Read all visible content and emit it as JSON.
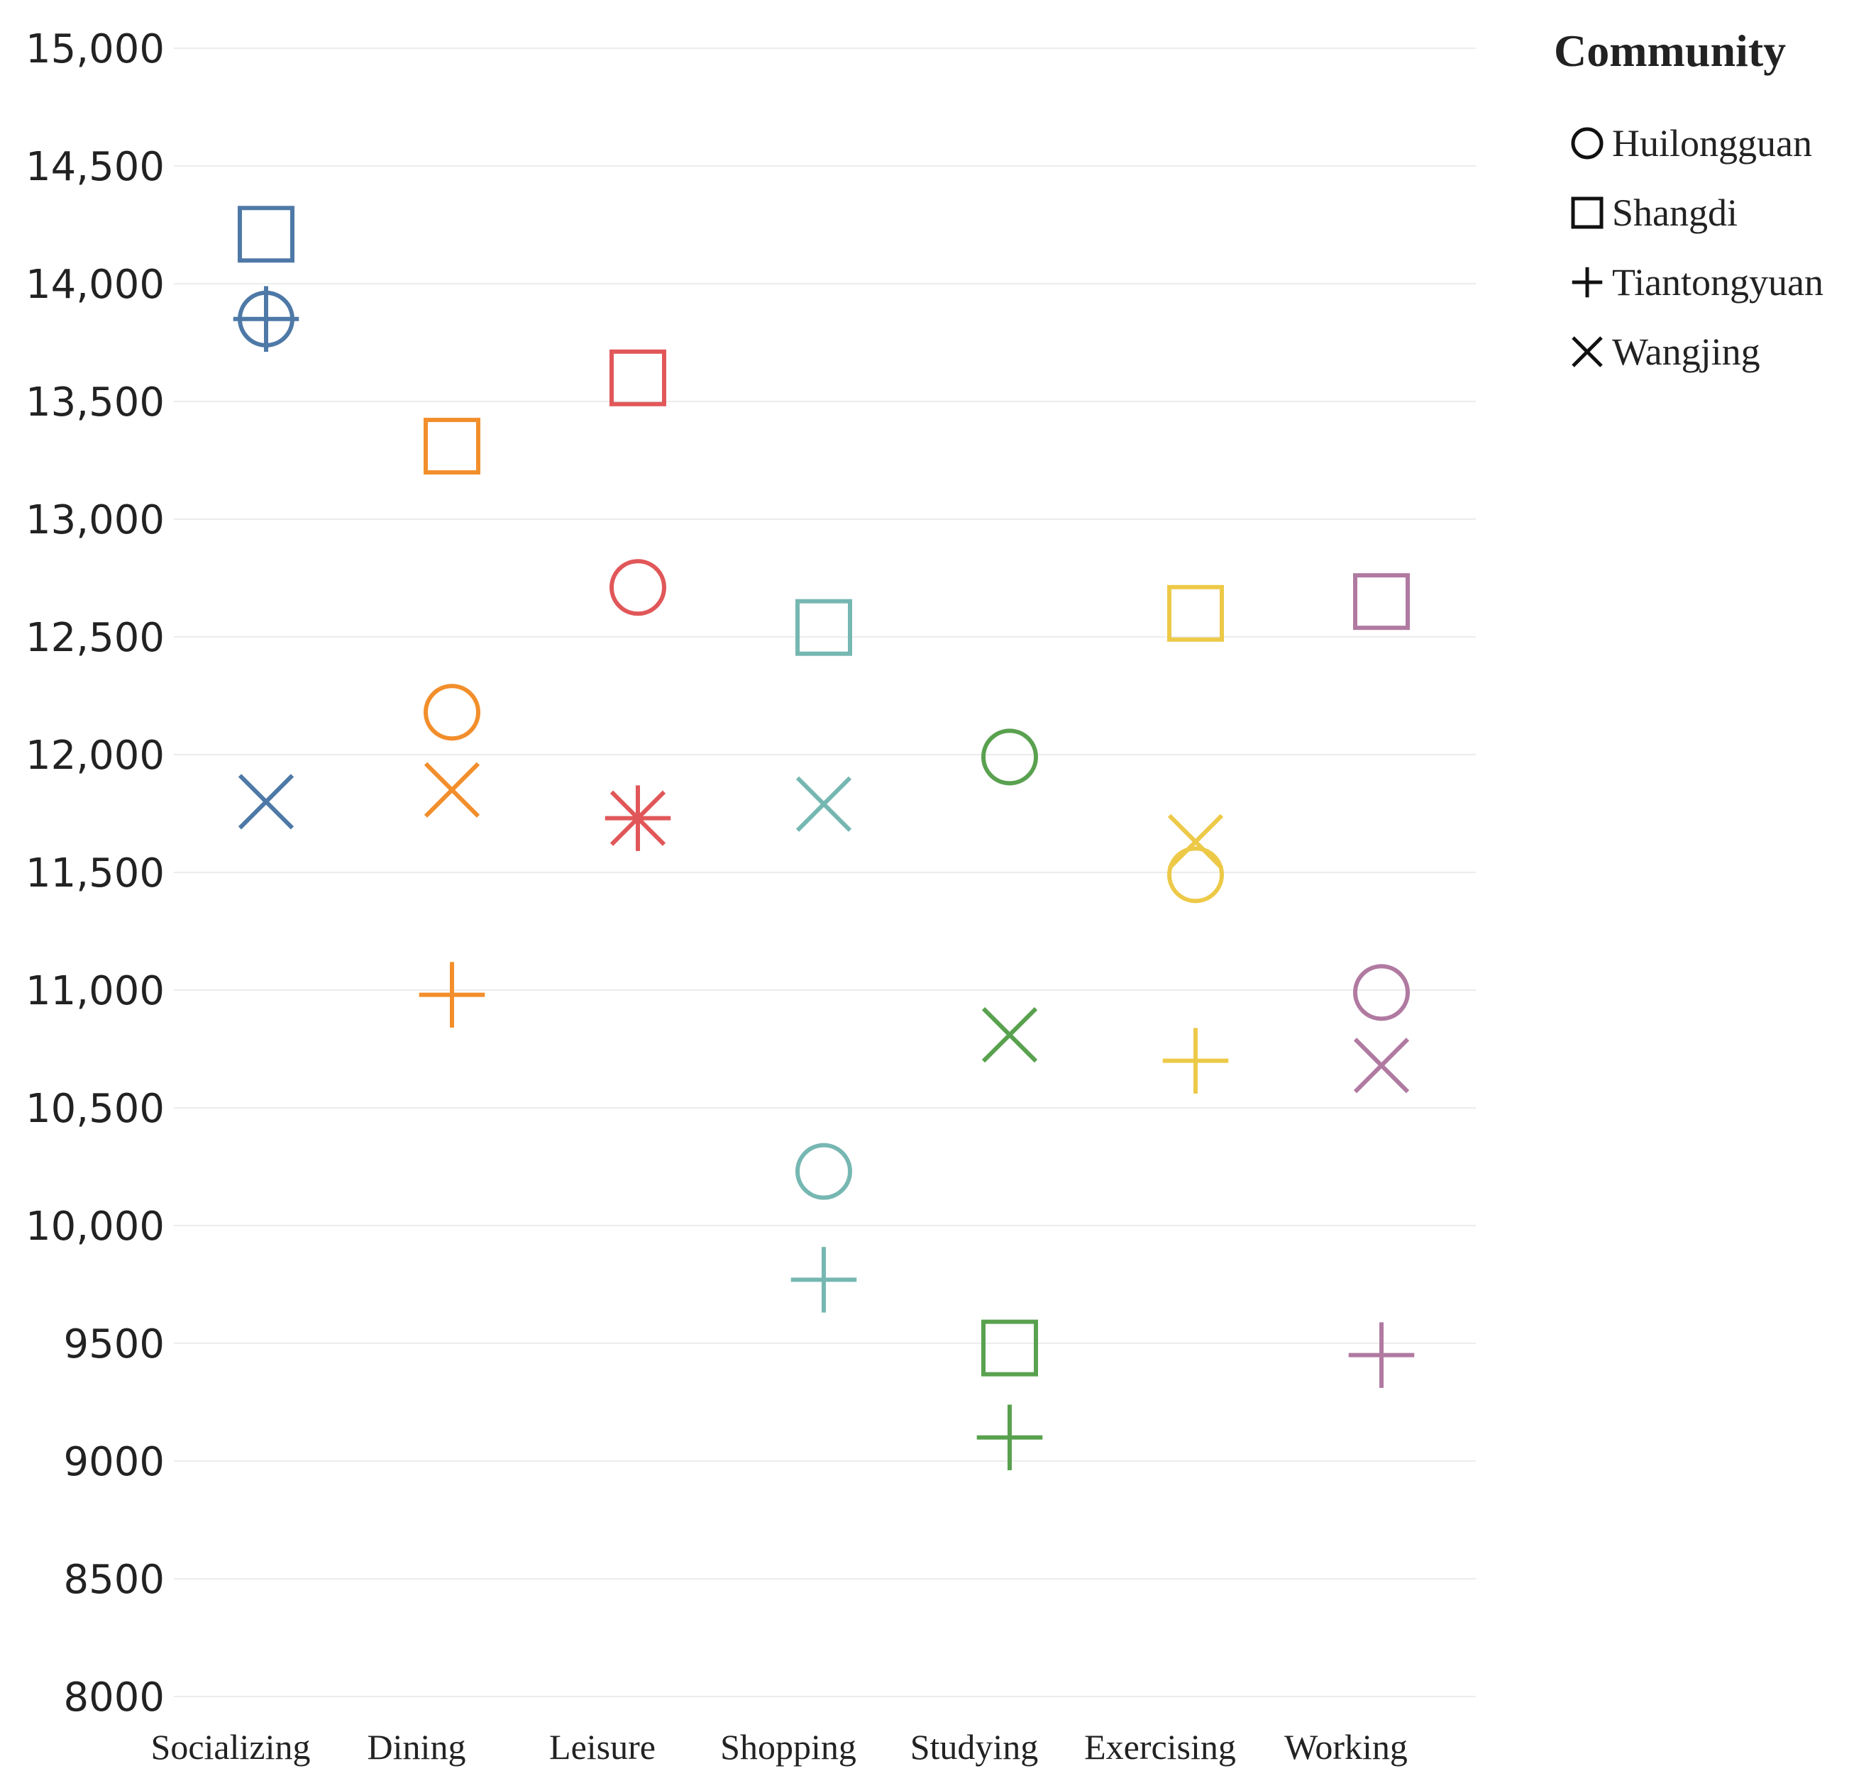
{
  "chart_data": {
    "type": "scatter",
    "title": "",
    "xlabel": "",
    "ylabel": "",
    "categories": [
      "Socializing",
      "Dining",
      "Leisure",
      "Shopping",
      "Studying",
      "Exercising",
      "Working"
    ],
    "ylim": [
      8000,
      15000
    ],
    "yticks": [
      15000,
      14500,
      14000,
      13500,
      13000,
      12500,
      12000,
      11500,
      11000,
      10500,
      10000,
      9500,
      9000,
      8500,
      8000
    ],
    "ytick_labels": [
      "15,000",
      "14,500",
      "14,000",
      "13,500",
      "13,000",
      "12,500",
      "12,000",
      "11,500",
      "11,000",
      "10,500",
      "10,000",
      "9500",
      "9000",
      "8500",
      "8000"
    ],
    "grid": true,
    "category_colors": {
      "Socializing": "#4e79a7",
      "Dining": "#f28e2b",
      "Leisure": "#e15759",
      "Shopping": "#76b7b2",
      "Studying": "#59a14f",
      "Exercising": "#edc948",
      "Working": "#b07aa1"
    },
    "legend": {
      "title": "Community",
      "position": "top-right",
      "entries": [
        {
          "name": "Huilongguan",
          "marker": "circle"
        },
        {
          "name": "Shangdi",
          "marker": "square"
        },
        {
          "name": "Tiantongyuan",
          "marker": "plus"
        },
        {
          "name": "Wangjing",
          "marker": "cross"
        }
      ]
    },
    "series": [
      {
        "name": "Huilongguan",
        "marker": "circle",
        "values": [
          13850,
          12180,
          12710,
          10230,
          11990,
          11490,
          10990
        ]
      },
      {
        "name": "Shangdi",
        "marker": "square",
        "values": [
          14210,
          13310,
          13600,
          12540,
          9480,
          12600,
          12650
        ]
      },
      {
        "name": "Tiantongyuan",
        "marker": "plus",
        "values": [
          13850,
          10980,
          11730,
          9770,
          9100,
          10700,
          9450
        ]
      },
      {
        "name": "Wangjing",
        "marker": "cross",
        "values": [
          11800,
          11850,
          11730,
          11790,
          10810,
          11630,
          10680
        ]
      }
    ]
  }
}
